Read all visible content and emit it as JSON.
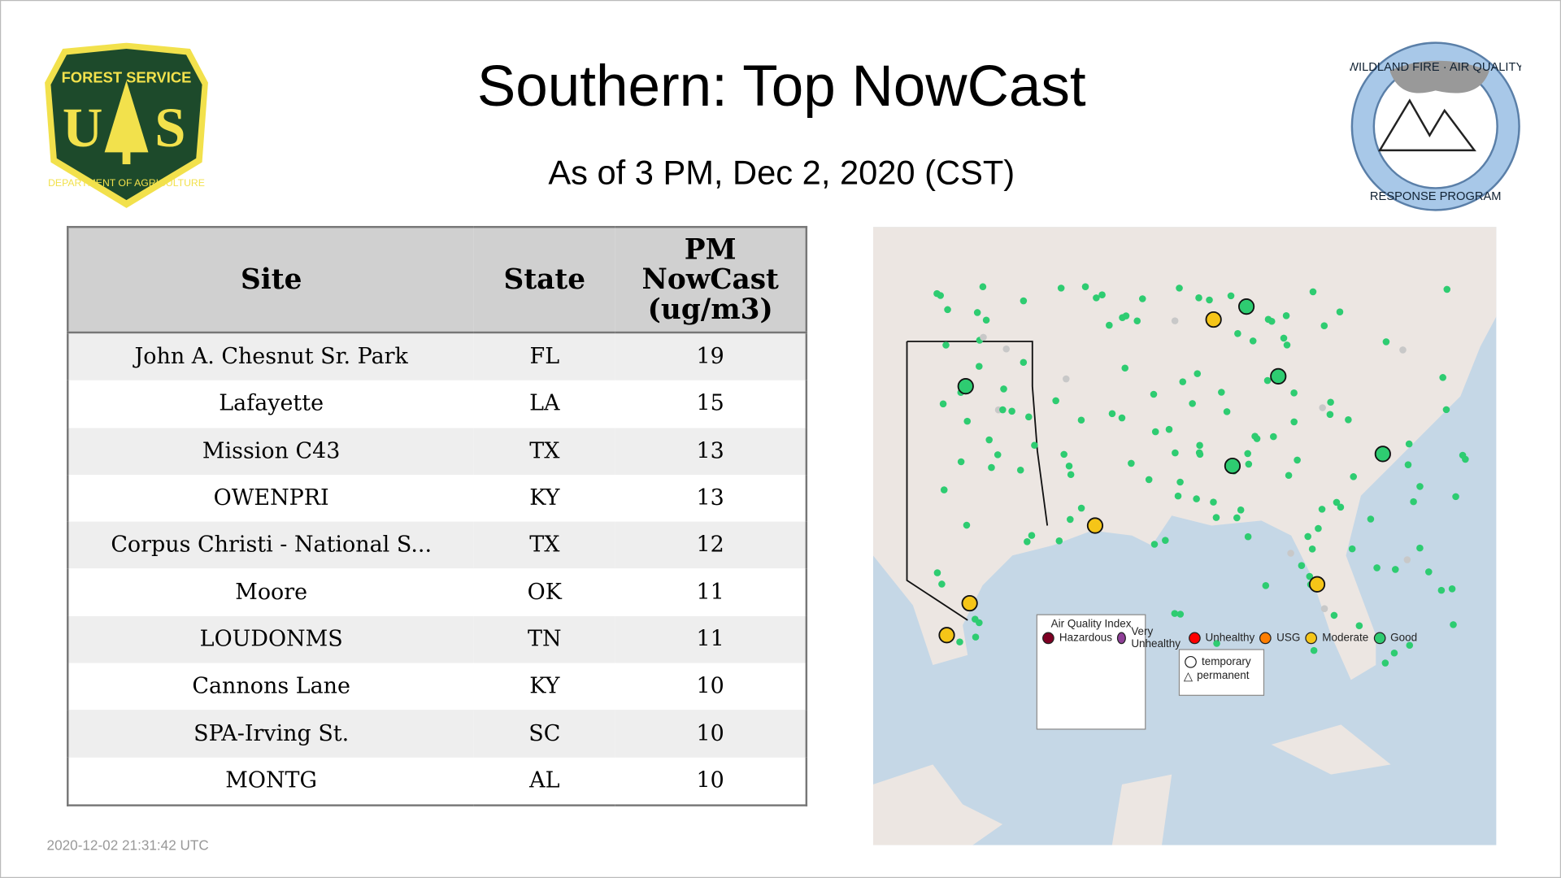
{
  "header": {
    "title": "Southern: Top NowCast",
    "subtitle": "As of  3 PM, Dec  2, 2020 (CST)"
  },
  "logos": {
    "left": "FOREST SERVICE U S DEPARTMENT OF AGRICULTURE",
    "right": "WILDLAND FIRE AIR QUALITY RESPONSE PROGRAM"
  },
  "table": {
    "columns": [
      "Site",
      "State",
      "PM NowCast (ug/m3)"
    ],
    "rows": [
      [
        "John A. Chesnut Sr. Park",
        "FL",
        "19"
      ],
      [
        "Lafayette",
        "LA",
        "15"
      ],
      [
        "Mission C43",
        "TX",
        "13"
      ],
      [
        "OWENPRI",
        "KY",
        "13"
      ],
      [
        "Corpus Christi - National S...",
        "TX",
        "12"
      ],
      [
        "Moore",
        "OK",
        "11"
      ],
      [
        "LOUDONMS",
        "TN",
        "11"
      ],
      [
        "Cannons Lane",
        "KY",
        "10"
      ],
      [
        "SPA-Irving St.",
        "SC",
        "10"
      ],
      [
        "MONTG",
        "AL",
        "10"
      ]
    ]
  },
  "legend": {
    "title": "Air Quality Index",
    "items": [
      {
        "label": "Hazardous",
        "color": "#7e0023"
      },
      {
        "label": "Very Unhealthy",
        "color": "#8f3f97"
      },
      {
        "label": "Unhealthy",
        "color": "#ff0000"
      },
      {
        "label": "USG",
        "color": "#ff7e00"
      },
      {
        "label": "Moderate",
        "color": "#f5c518"
      },
      {
        "label": "Good",
        "color": "#2ecc71"
      }
    ],
    "shapes": [
      "temporary",
      "permanent"
    ]
  },
  "footer": {
    "timestamp": "2020-12-02 21:31:42 UTC"
  }
}
